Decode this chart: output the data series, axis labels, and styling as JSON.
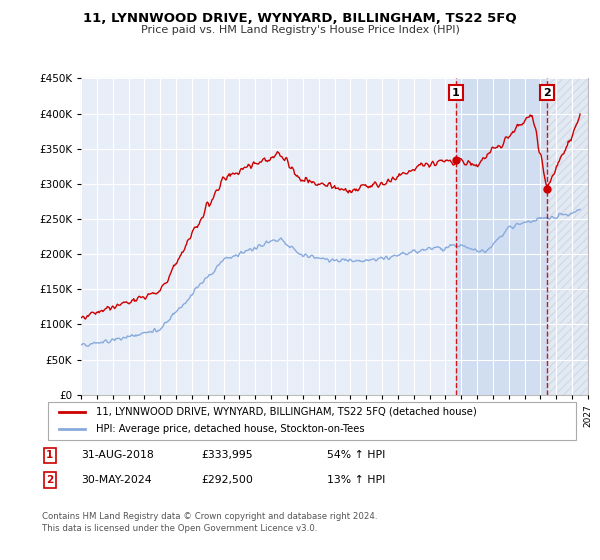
{
  "title": "11, LYNNWOOD DRIVE, WYNYARD, BILLINGHAM, TS22 5FQ",
  "subtitle": "Price paid vs. HM Land Registry's House Price Index (HPI)",
  "background_color": "#ffffff",
  "plot_bg_color": "#e8eef7",
  "plot_bg_color_shaded": "#d0dff0",
  "grid_color": "#ffffff",
  "red_color": "#cc0000",
  "blue_color": "#88aadd",
  "point1_year": 2018.67,
  "point1_value": 333995,
  "point2_year": 2024.42,
  "point2_value": 292500,
  "legend_line1": "11, LYNNWOOD DRIVE, WYNYARD, BILLINGHAM, TS22 5FQ (detached house)",
  "legend_line2": "HPI: Average price, detached house, Stockton-on-Tees",
  "annotation1_date": "31-AUG-2018",
  "annotation1_price": "£333,995",
  "annotation1_hpi": "54% ↑ HPI",
  "annotation2_date": "30-MAY-2024",
  "annotation2_price": "£292,500",
  "annotation2_hpi": "13% ↑ HPI",
  "footer": "Contains HM Land Registry data © Crown copyright and database right 2024.\nThis data is licensed under the Open Government Licence v3.0.",
  "xmin": 1995,
  "xmax": 2027,
  "ymin": 0,
  "ymax": 450000,
  "yticks": [
    0,
    50000,
    100000,
    150000,
    200000,
    250000,
    300000,
    350000,
    400000,
    450000
  ]
}
